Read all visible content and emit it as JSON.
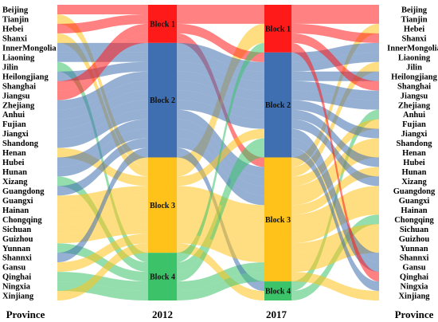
{
  "chart_data": {
    "type": "alluvial",
    "axis_labels": {
      "left": "Province",
      "y2012": "2012",
      "y2017": "2017",
      "right": "Province"
    },
    "provinces": [
      "Beijing",
      "Tianjin",
      "Hebei",
      "Shanxi",
      "InnerMongolia",
      "Liaoning",
      "Jilin",
      "Heilongjiang",
      "Shanghai",
      "Jiangsu",
      "Zhejiang",
      "Anhui",
      "Fujian",
      "Jiangxi",
      "Shandong",
      "Henan",
      "Hubei",
      "Hunan",
      "Xizang",
      "Guangdong",
      "Guangxi",
      "Hainan",
      "Chongqing",
      "Sichuan",
      "Guizhou",
      "Yunnan",
      "Shannxi",
      "Gansu",
      "Qinghai",
      "Ningxia",
      "Xinjiang"
    ],
    "blocks": [
      {
        "name": "Block 1",
        "color": "#ff1a1a"
      },
      {
        "name": "Block 2",
        "color": "#3f6fb0"
      },
      {
        "name": "Block 3",
        "color": "#ffc21a"
      },
      {
        "name": "Block 4",
        "color": "#3cc36a"
      }
    ],
    "assign_2012": [
      1,
      3,
      1,
      3,
      2,
      2,
      4,
      2,
      1,
      1,
      2,
      2,
      2,
      2,
      2,
      3,
      2,
      2,
      4,
      2,
      3,
      3,
      3,
      3,
      3,
      4,
      2,
      3,
      4,
      4,
      3
    ],
    "assign_2017": [
      1,
      1,
      3,
      1,
      2,
      2,
      3,
      2,
      1,
      2,
      2,
      4,
      3,
      2,
      3,
      3,
      2,
      3,
      2,
      3,
      3,
      3,
      4,
      3,
      3,
      3,
      2,
      2,
      1,
      2,
      3
    ]
  }
}
